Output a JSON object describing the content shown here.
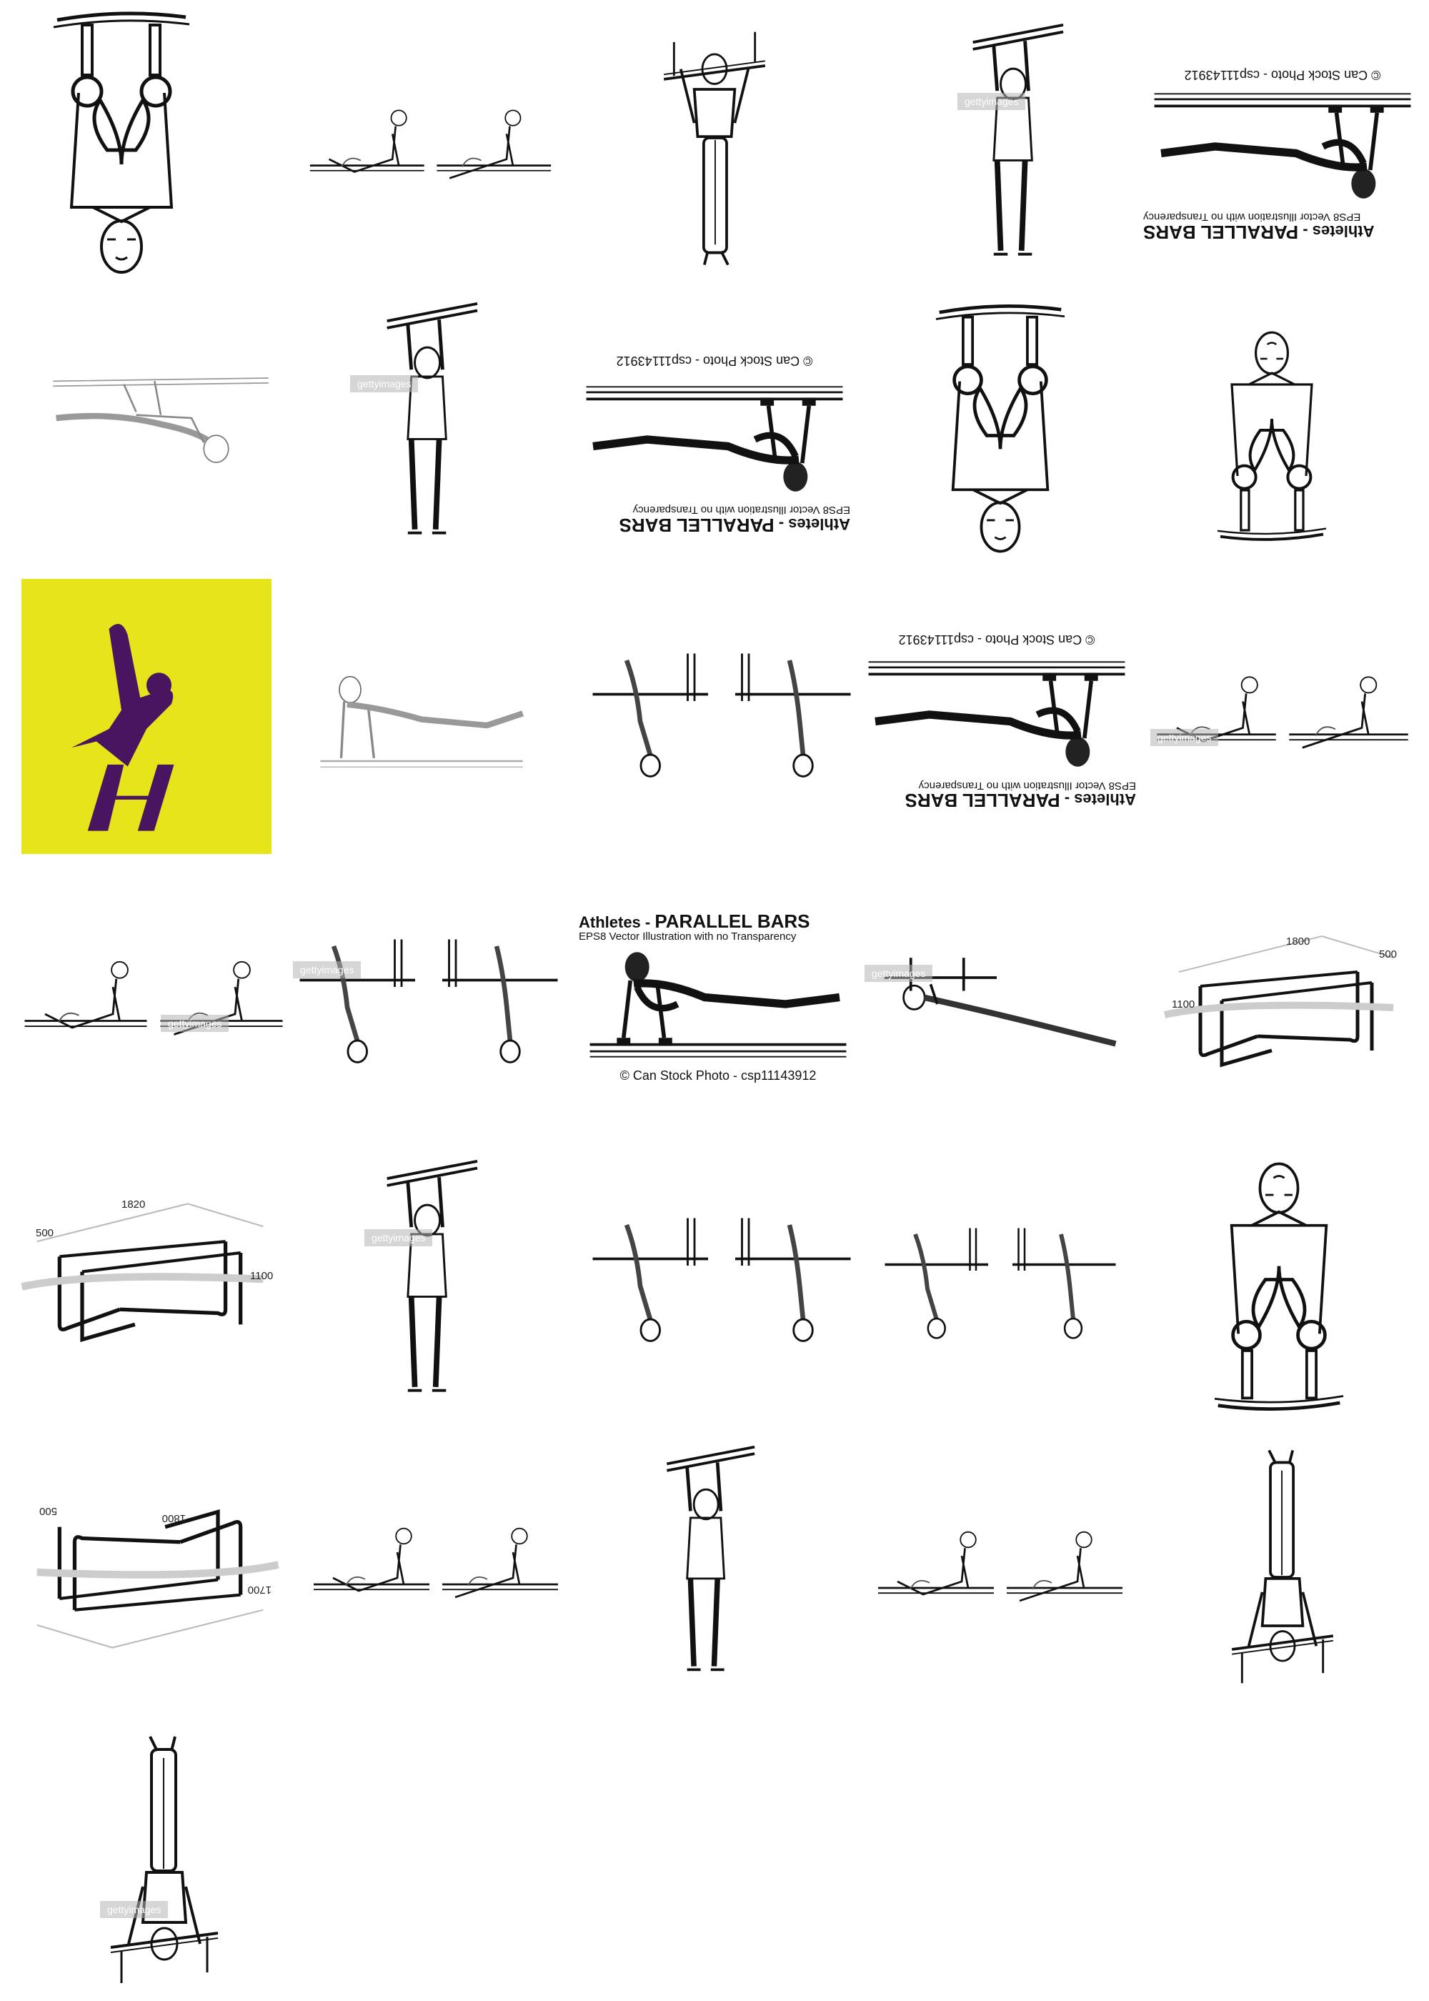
{
  "tiles": [
    {
      "name": "tile-rings-1"
    },
    {
      "name": "tile-parallel-pair-1"
    },
    {
      "name": "tile-handstand-1"
    },
    {
      "name": "tile-hanging-bar-1"
    },
    {
      "name": "tile-athletes-parallel-bars-1"
    },
    {
      "name": "tile-sketch-hang"
    },
    {
      "name": "tile-hanging-bar-2"
    },
    {
      "name": "tile-athletes-parallel-bars-2"
    },
    {
      "name": "tile-rings-2"
    },
    {
      "name": "tile-rings-3"
    },
    {
      "name": "tile-pictogram-yellow"
    },
    {
      "name": "tile-sketch-plank"
    },
    {
      "name": "tile-parallel-pair-2"
    },
    {
      "name": "tile-athletes-parallel-bars-3"
    },
    {
      "name": "tile-parallel-pair-3"
    },
    {
      "name": "tile-parallel-pair-4"
    },
    {
      "name": "tile-parallel-pair-5"
    },
    {
      "name": "tile-athletes-parallel-bars-4"
    },
    {
      "name": "tile-swing-bar"
    },
    {
      "name": "tile-bar-diagram-1"
    },
    {
      "name": "tile-bar-diagram-2"
    },
    {
      "name": "tile-hanging-bar-3"
    },
    {
      "name": "tile-parallel-pair-6"
    },
    {
      "name": "tile-parallel-pair-7"
    },
    {
      "name": "tile-rings-4"
    },
    {
      "name": "tile-bar-diagram-3"
    },
    {
      "name": "tile-parallel-pair-8"
    },
    {
      "name": "tile-hanging-bar-4"
    },
    {
      "name": "tile-parallel-pair-9"
    },
    {
      "name": "tile-handstand-2"
    },
    {
      "name": "tile-handstand-3"
    }
  ],
  "captions": {
    "title_prefix": "Athletes - ",
    "title_main": "PARALLEL BARS",
    "subtitle": "EPS8 Vector Illustration with no Transparency",
    "credit": "© Can Stock Photo - csp11143912"
  },
  "watermark": "gettyimages",
  "diagram_dims": {
    "length": "1800",
    "height": "1700",
    "width": "500",
    "length_alt": "1820",
    "height_alt": "1100"
  },
  "colors": {
    "pictogram_bg": "#e6e41a",
    "pictogram_figure": "#4a1560",
    "ink": "#111111"
  }
}
